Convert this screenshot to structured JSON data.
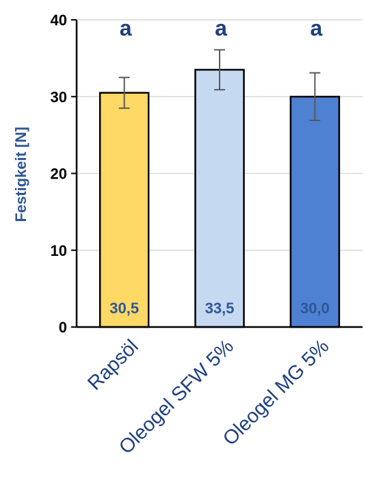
{
  "chart_data": {
    "type": "bar",
    "title": "",
    "xlabel": "",
    "ylabel": "Festigkeit [N]",
    "categories": [
      "Rapsöl",
      "Oleogel SFW 5%",
      "Oleogel MG 5%"
    ],
    "values": [
      30.5,
      33.5,
      30.0
    ],
    "error": [
      2.0,
      2.6,
      3.1
    ],
    "value_labels": [
      "30,5",
      "33,5",
      "30,0"
    ],
    "significance_letters": [
      "a",
      "a",
      "a"
    ],
    "colors": [
      "#ffd966",
      "#c5d9f1",
      "#4f81d2"
    ],
    "ylim": [
      0,
      40
    ],
    "yticks": [
      0,
      10,
      20,
      30,
      40
    ],
    "grid": true,
    "legend": "none"
  }
}
